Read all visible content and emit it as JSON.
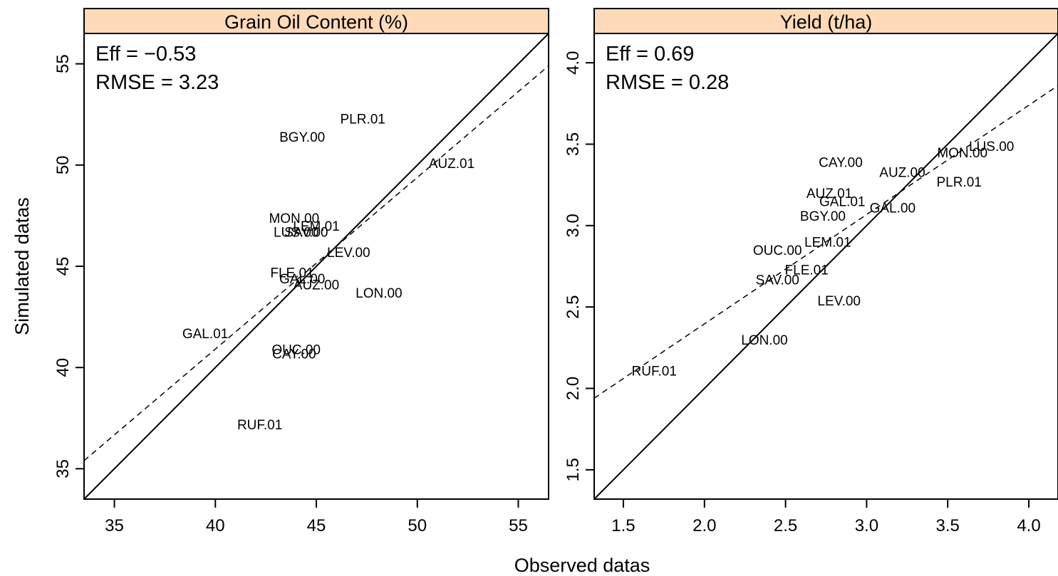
{
  "figure": {
    "xlabel": "Observed datas",
    "ylabel": "Simulated datas",
    "strip_color": "#FFDAB9"
  },
  "chart_data": [
    {
      "type": "scatter",
      "title": "Grain Oil Content (%)",
      "xlim": [
        33.5,
        56.5
      ],
      "ylim": [
        33.5,
        56.5
      ],
      "xticks": [
        35,
        40,
        45,
        50,
        55
      ],
      "yticks": [
        35,
        40,
        45,
        50,
        55
      ],
      "stats": [
        "Eff = −0.53",
        "RMSE = 3.23"
      ],
      "one_to_one_line": true,
      "regression_line": {
        "style": "dashed",
        "points": [
          [
            33.5,
            35.4
          ],
          [
            56.5,
            54.9
          ]
        ]
      },
      "points": [
        {
          "label": "PLR.01",
          "x": 47.3,
          "y": 52.3
        },
        {
          "label": "BGY.00",
          "x": 44.3,
          "y": 51.4
        },
        {
          "label": "AUZ.01",
          "x": 51.7,
          "y": 50.1
        },
        {
          "label": "MON.00",
          "x": 43.9,
          "y": 47.4
        },
        {
          "label": "LEM.01",
          "x": 45.0,
          "y": 47.0
        },
        {
          "label": "LUS.00",
          "x": 44.0,
          "y": 46.7
        },
        {
          "label": "SAV.00",
          "x": 44.5,
          "y": 46.7
        },
        {
          "label": "LEV.00",
          "x": 46.6,
          "y": 45.7
        },
        {
          "label": "FLE.01",
          "x": 43.8,
          "y": 44.7
        },
        {
          "label": "GAL.00",
          "x": 44.3,
          "y": 44.4
        },
        {
          "label": "AUZ.00",
          "x": 45.0,
          "y": 44.1
        },
        {
          "label": "LON.00",
          "x": 48.1,
          "y": 43.7
        },
        {
          "label": "GAL.01",
          "x": 39.5,
          "y": 41.7
        },
        {
          "label": "OUC.00",
          "x": 44.0,
          "y": 40.9
        },
        {
          "label": "CAY.00",
          "x": 43.9,
          "y": 40.7
        },
        {
          "label": "RUF.01",
          "x": 42.2,
          "y": 37.2
        }
      ]
    },
    {
      "type": "scatter",
      "title": "Yield (t/ha)",
      "xlim": [
        1.32,
        4.18
      ],
      "ylim": [
        1.32,
        4.18
      ],
      "xticks": [
        1.5,
        2.0,
        2.5,
        3.0,
        3.5,
        4.0
      ],
      "yticks": [
        1.5,
        2.0,
        2.5,
        3.0,
        3.5,
        4.0
      ],
      "stats": [
        "Eff = 0.69",
        "RMSE = 0.28"
      ],
      "one_to_one_line": true,
      "regression_line": {
        "style": "dashed",
        "points": [
          [
            1.32,
            1.94
          ],
          [
            4.18,
            3.86
          ]
        ]
      },
      "points": [
        {
          "label": "LUS.00",
          "x": 3.77,
          "y": 3.49
        },
        {
          "label": "MON.00",
          "x": 3.59,
          "y": 3.45
        },
        {
          "label": "CAY.00",
          "x": 2.84,
          "y": 3.39
        },
        {
          "label": "AUZ.00",
          "x": 3.22,
          "y": 3.33
        },
        {
          "label": "PLR.01",
          "x": 3.57,
          "y": 3.27
        },
        {
          "label": "AUZ.01",
          "x": 2.77,
          "y": 3.2
        },
        {
          "label": "GAL.01",
          "x": 2.85,
          "y": 3.15
        },
        {
          "label": "GAL.00",
          "x": 3.16,
          "y": 3.11
        },
        {
          "label": "BGY.00",
          "x": 2.73,
          "y": 3.06
        },
        {
          "label": "LEM.01",
          "x": 2.76,
          "y": 2.9
        },
        {
          "label": "OUC.00",
          "x": 2.45,
          "y": 2.85
        },
        {
          "label": "FLE.01",
          "x": 2.63,
          "y": 2.73
        },
        {
          "label": "SAV.00",
          "x": 2.45,
          "y": 2.67
        },
        {
          "label": "LEV.00",
          "x": 2.83,
          "y": 2.54
        },
        {
          "label": "LON.00",
          "x": 2.37,
          "y": 2.3
        },
        {
          "label": "RUF.01",
          "x": 1.69,
          "y": 2.11
        }
      ]
    }
  ]
}
